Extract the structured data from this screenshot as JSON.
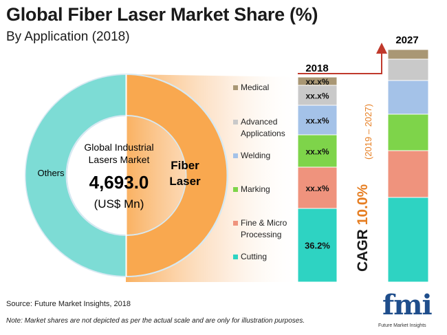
{
  "header": {
    "title": "Global Fiber Laser Market Share (%)",
    "subtitle": "By Application  (2018)"
  },
  "donut": {
    "center_lines": [
      "Global Industrial",
      "Lasers Market"
    ],
    "center_value": "4,693.0",
    "center_unit": "(US$ Mn)",
    "fiber_label_1": "Fiber",
    "fiber_label_2": "Laser",
    "others_label": "Others",
    "colors": {
      "fiber": "#f9a84f",
      "others": "#7ddcd5"
    }
  },
  "bar_2018": {
    "label": "2018"
  },
  "bar_2027": {
    "label": "2027"
  },
  "cagr": {
    "label": "CAGR 10.0%",
    "period": "(2019 – 2027)"
  },
  "footer": {
    "source": "Source: Future Market Insights, 2018",
    "note": "Note: Market shares are not depicted as per the actual scale and are only for illustration purposes."
  },
  "logo": {
    "text": "fmi",
    "subtext": "Future Market Insights"
  },
  "chart_data": [
    {
      "type": "pie",
      "categories": [
        "Fiber Laser",
        "Others"
      ],
      "values": [
        null,
        null
      ],
      "total": "4,693.0",
      "unit": "US$ Mn"
    },
    {
      "type": "bar",
      "stacked": true,
      "categories": [
        "2018",
        "2027"
      ],
      "series": [
        {
          "name": "Cutting",
          "color": "#2ed3c2",
          "label_2018": "36.2%",
          "value_2018": 36.2
        },
        {
          "name": "Fine & Micro Processing",
          "color": "#ef937d",
          "label_2018": "xx.x%"
        },
        {
          "name": "Marking",
          "color": "#7ed44a",
          "label_2018": "xx.x%"
        },
        {
          "name": "Welding",
          "color": "#a4c2e8",
          "label_2018": "xx.x%"
        },
        {
          "name": "Advanced Applications",
          "color": "#c9c9c9",
          "label_2018": "xx.x%"
        },
        {
          "name": "Medical",
          "color": "#a99774",
          "label_2018": "xx.x%"
        }
      ],
      "cagr": "10.0%"
    }
  ]
}
